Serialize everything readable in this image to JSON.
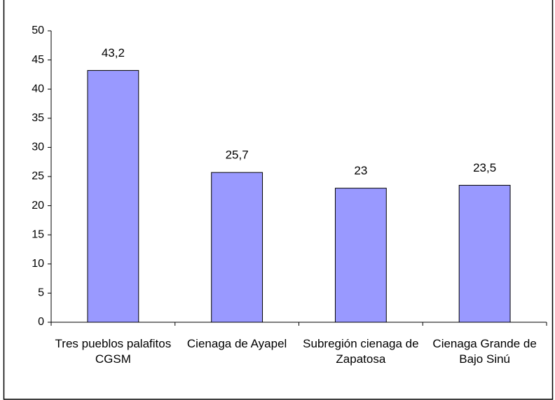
{
  "chart_data": {
    "type": "bar",
    "categories": [
      "Tres pueblos palafitos CGSM",
      "Cienaga de Ayapel",
      "Subregión cienaga de Zapatosa",
      "Cienaga Grande de Bajo Sinú"
    ],
    "values": [
      43.2,
      25.7,
      23,
      23.5
    ],
    "value_labels": [
      "43,2",
      "25,7",
      "23",
      "23,5"
    ],
    "color": "#9999ff",
    "ylim": [
      0,
      50
    ],
    "yticks": [
      0,
      5,
      10,
      15,
      20,
      25,
      30,
      35,
      40,
      45,
      50
    ],
    "grid": false
  }
}
